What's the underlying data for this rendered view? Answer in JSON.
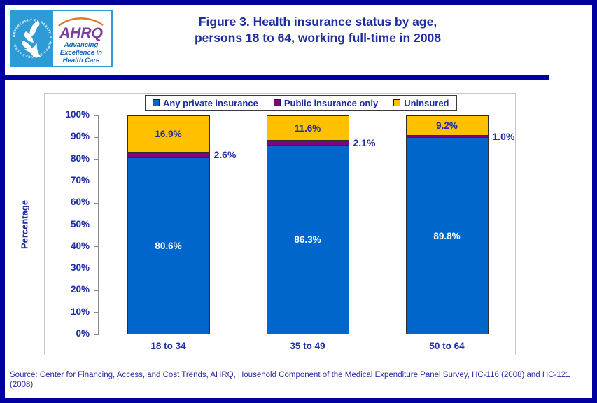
{
  "page": {
    "title_line1": "Figure 3. Health insurance status by age,",
    "title_line2": "persons 18 to 64, working full-time in 2008",
    "source": "Source: Center for Financing, Access, and Cost Trends, AHRQ, Household Component of the Medical Expenditure Panel Survey, HC-116 (2008) and HC-121 (2008)"
  },
  "logo": {
    "org": "AHRQ",
    "tagline_line1": "Advancing",
    "tagline_line2": "Excellence in",
    "tagline_line3": "Health Care",
    "seal_text": "DEPARTMENT OF HEALTH & HUMAN SERVICES • USA"
  },
  "colors": {
    "navy": "#0000A0",
    "text_blue": "#1E2DA0",
    "bar_blue": "#0066CC",
    "bar_purple": "#800080",
    "bar_yellow": "#FFC000",
    "frame_gray": "#C6C6C6",
    "axis_gray": "#8A8A8A"
  },
  "chart_data": {
    "type": "bar",
    "stacked": true,
    "title": "Figure 3. Health insurance status by age, persons 18 to 64, working full-time in 2008",
    "categories": [
      "18 to 34",
      "35 to 49",
      "50 to 64"
    ],
    "series": [
      {
        "name": "Any private insurance",
        "color": "#0066CC",
        "values": [
          80.6,
          86.3,
          89.8
        ],
        "label_placement": "inside-white"
      },
      {
        "name": "Public insurance only",
        "color": "#800080",
        "values": [
          2.6,
          2.1,
          1.0
        ],
        "label_placement": "outside-right"
      },
      {
        "name": "Uninsured",
        "color": "#FFC000",
        "values": [
          16.9,
          11.6,
          9.2
        ],
        "label_placement": "inside-navy"
      }
    ],
    "xlabel": "",
    "ylabel": "Percentage",
    "ylim": [
      0,
      100
    ],
    "yticks": [
      "0%",
      "10%",
      "20%",
      "30%",
      "40%",
      "50%",
      "60%",
      "70%",
      "80%",
      "90%",
      "100%"
    ],
    "legend_position": "top-center",
    "grid": false
  }
}
